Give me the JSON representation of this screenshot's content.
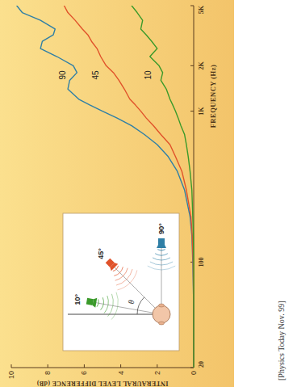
{
  "chart_data": {
    "type": "line",
    "xlabel": "FREQUENCY (Hz)",
    "ylabel": "INTERAURAL LEVEL DIFFERENCE (dB)",
    "caption": "[Physics Today Nov. 99]",
    "annotations": [
      "10°",
      "45°",
      "90°",
      "θ"
    ],
    "x": [
      20,
      50,
      100,
      150,
      200,
      300,
      400,
      500,
      600,
      700,
      800,
      900,
      1000,
      1100,
      1200,
      1400,
      1600,
      1800,
      2000,
      2300,
      2600,
      2900,
      3200,
      3500,
      4000,
      4500,
      5000
    ],
    "series": [
      {
        "name": "90",
        "color": "#2f7fa6",
        "values": [
          0,
          0,
          0.05,
          0.1,
          0.2,
          0.5,
          0.9,
          1.4,
          2.0,
          2.7,
          3.4,
          4.2,
          5.0,
          5.7,
          6.3,
          6.9,
          6.8,
          6.4,
          6.6,
          7.5,
          8.4,
          8.3,
          7.7,
          7.6,
          8.4,
          9.4,
          9.7
        ]
      },
      {
        "name": "45",
        "color": "#e0522a",
        "values": [
          0,
          0,
          0.03,
          0.08,
          0.15,
          0.4,
          0.65,
          1.0,
          1.3,
          1.8,
          2.2,
          2.6,
          2.9,
          3.2,
          3.5,
          3.8,
          4.1,
          4.4,
          4.8,
          5.1,
          5.3,
          5.6,
          5.8,
          6.1,
          6.5,
          6.9,
          7.1
        ]
      },
      {
        "name": "10",
        "color": "#3a9a2a",
        "values": [
          0,
          0,
          0,
          0.02,
          0.05,
          0.1,
          0.2,
          0.3,
          0.4,
          0.5,
          0.7,
          0.85,
          1.0,
          1.15,
          1.3,
          1.5,
          1.8,
          1.7,
          1.9,
          2.4,
          2.0,
          2.3,
          2.6,
          2.9,
          2.8,
          3.1,
          3.4
        ]
      }
    ],
    "xlim": [
      20,
      5000
    ],
    "ylim": [
      0,
      10
    ],
    "xticks": [
      20,
      100,
      {
        "value": 1000,
        "label": "1K"
      },
      {
        "value": 2000,
        "label": "2K"
      },
      {
        "value": 5000,
        "label": "5K"
      }
    ],
    "yticks": [
      0,
      2,
      4,
      6,
      8,
      10
    ],
    "log": "x",
    "grid": false
  }
}
